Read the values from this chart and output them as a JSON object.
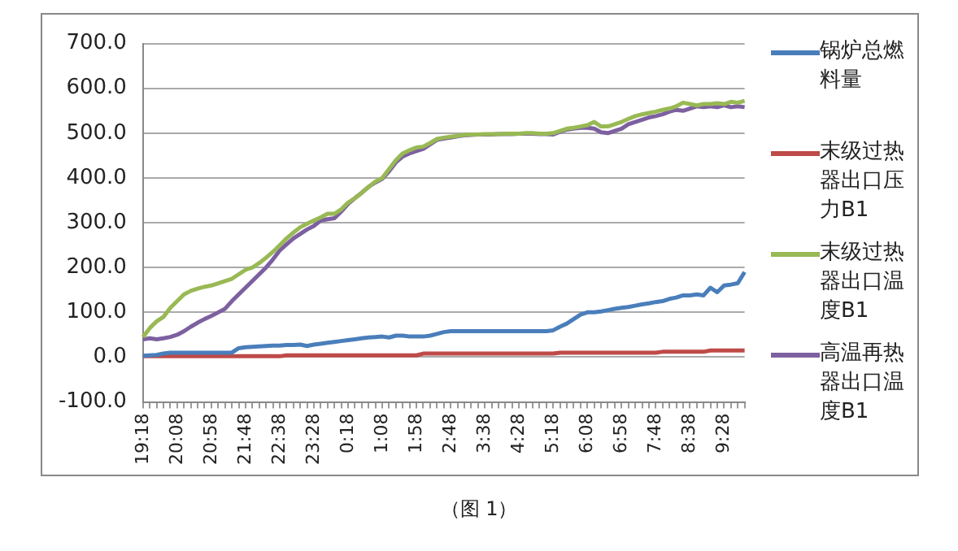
{
  "chart_data": {
    "type": "line",
    "categories": [
      "19:18",
      null,
      null,
      null,
      null,
      "20:08",
      null,
      null,
      null,
      null,
      "20:58",
      null,
      null,
      null,
      null,
      "21:48",
      null,
      null,
      null,
      null,
      "22:38",
      null,
      null,
      null,
      null,
      "23:28",
      null,
      null,
      null,
      null,
      "0:18",
      null,
      null,
      null,
      null,
      "1:08",
      null,
      null,
      null,
      null,
      "1:58",
      null,
      null,
      null,
      null,
      "2:48",
      null,
      null,
      null,
      null,
      "3:38",
      null,
      null,
      null,
      null,
      "4:28",
      null,
      null,
      null,
      null,
      "5:18",
      null,
      null,
      null,
      null,
      "6:08",
      null,
      null,
      null,
      null,
      "6:58",
      null,
      null,
      null,
      null,
      "7:48",
      null,
      null,
      null,
      null,
      "8:38",
      null,
      null,
      null,
      null,
      "9:28",
      null,
      null,
      null
    ],
    "series": [
      {
        "name": "锅炉总燃料量",
        "color": "#4a7ebb",
        "values": [
          3,
          4,
          5,
          8,
          10,
          10,
          10,
          10,
          10,
          10,
          10,
          10,
          10,
          10,
          20,
          22,
          23,
          24,
          25,
          26,
          26,
          27,
          27,
          28,
          25,
          28,
          30,
          32,
          34,
          36,
          38,
          40,
          42,
          44,
          45,
          46,
          44,
          48,
          48,
          46,
          46,
          46,
          48,
          52,
          56,
          58,
          58,
          58,
          58,
          58,
          58,
          58,
          58,
          58,
          58,
          58,
          58,
          58,
          58,
          58,
          60,
          68,
          75,
          85,
          95,
          100,
          100,
          102,
          105,
          108,
          110,
          112,
          115,
          118,
          120,
          123,
          125,
          130,
          133,
          138,
          138,
          140,
          138,
          155,
          145,
          160,
          162,
          165,
          190
        ]
      },
      {
        "name": "末级过热器出口压力B1",
        "color": "#be4b48",
        "values": [
          2,
          2,
          2,
          2,
          2,
          2,
          2,
          2,
          2,
          2,
          2,
          2,
          2,
          2,
          2,
          2,
          2,
          2,
          2,
          2,
          2,
          4,
          4,
          4,
          4,
          4,
          4,
          4,
          4,
          4,
          4,
          4,
          4,
          4,
          4,
          4,
          4,
          4,
          4,
          4,
          4,
          8,
          8,
          8,
          8,
          8,
          8,
          8,
          8,
          8,
          8,
          8,
          8,
          8,
          8,
          8,
          8,
          8,
          8,
          8,
          8,
          10,
          10,
          10,
          10,
          10,
          10,
          10,
          10,
          10,
          10,
          10,
          10,
          10,
          10,
          10,
          12,
          12,
          12,
          12,
          12,
          12,
          12,
          15,
          15,
          15,
          15,
          15,
          15
        ]
      },
      {
        "name": "末级过热器出口温度B1",
        "color": "#98b954",
        "values": [
          45,
          65,
          80,
          90,
          110,
          125,
          140,
          148,
          153,
          157,
          160,
          165,
          170,
          175,
          185,
          195,
          200,
          210,
          222,
          235,
          250,
          265,
          278,
          290,
          298,
          305,
          312,
          320,
          320,
          330,
          345,
          355,
          367,
          380,
          392,
          400,
          420,
          440,
          455,
          462,
          468,
          470,
          478,
          487,
          490,
          492,
          494,
          496,
          497,
          497,
          498,
          498,
          498,
          499,
          499,
          499,
          500,
          500,
          499,
          499,
          500,
          505,
          510,
          512,
          515,
          518,
          525,
          515,
          515,
          520,
          525,
          532,
          538,
          542,
          545,
          548,
          552,
          555,
          560,
          568,
          565,
          562,
          565,
          565,
          567,
          565,
          570,
          568,
          572
        ]
      },
      {
        "name": "高温再热器出口温度B1",
        "color": "#7d60a0",
        "values": [
          40,
          42,
          40,
          42,
          45,
          50,
          58,
          68,
          77,
          85,
          92,
          100,
          108,
          125,
          140,
          155,
          170,
          185,
          200,
          218,
          238,
          252,
          265,
          275,
          285,
          293,
          305,
          308,
          310,
          325,
          342,
          355,
          367,
          380,
          390,
          398,
          415,
          435,
          448,
          455,
          460,
          465,
          475,
          485,
          488,
          490,
          493,
          495,
          496,
          497,
          497,
          497,
          498,
          498,
          498,
          499,
          499,
          499,
          498,
          498,
          497,
          503,
          508,
          510,
          512,
          512,
          510,
          502,
          500,
          505,
          510,
          520,
          525,
          530,
          535,
          538,
          542,
          548,
          552,
          550,
          555,
          560,
          558,
          560,
          558,
          562,
          558,
          560,
          558
        ]
      }
    ],
    "ylim": [
      -100,
      700
    ],
    "yticks": [
      {
        "value": -100,
        "label": "-100.0"
      },
      {
        "value": 0,
        "label": "0.0"
      },
      {
        "value": 100,
        "label": "100.0"
      },
      {
        "value": 200,
        "label": "200.0"
      },
      {
        "value": 300,
        "label": "300.0"
      },
      {
        "value": 400,
        "label": "400.0"
      },
      {
        "value": 500,
        "label": "500.0"
      },
      {
        "value": 600,
        "label": "600.0"
      },
      {
        "value": 700,
        "label": "700.0"
      }
    ],
    "grid": "y",
    "legend": "right",
    "marker": "none",
    "line_style": "solid",
    "annotations": [
      "（图 1）"
    ]
  }
}
